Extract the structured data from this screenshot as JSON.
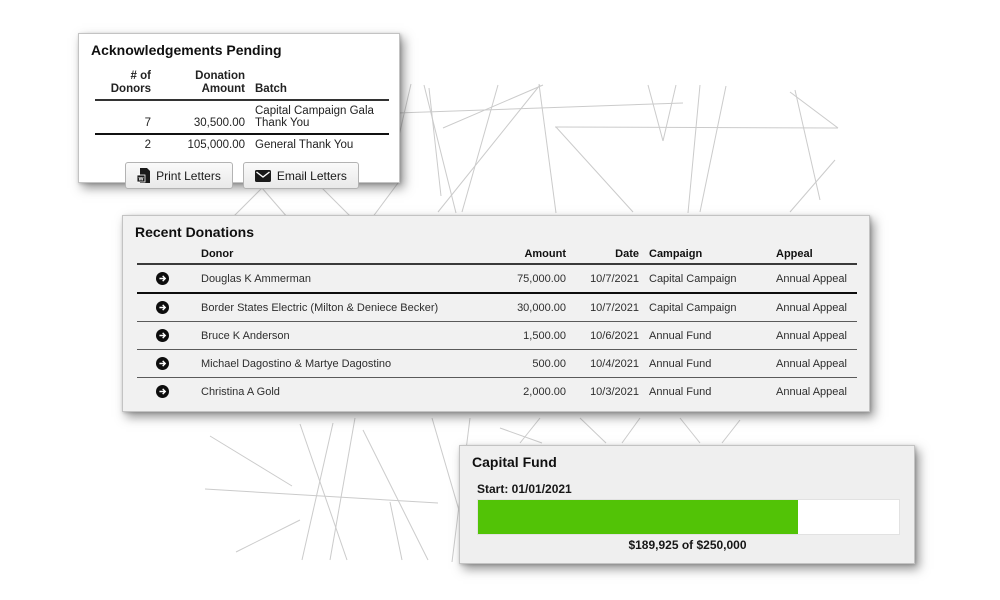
{
  "ack": {
    "title": "Acknowledgements Pending",
    "headers": {
      "donors_l1": "# of",
      "donors_l2": "Donors",
      "amount_l1": "Donation",
      "amount_l2": "Amount",
      "batch": "Batch"
    },
    "rows": [
      {
        "donors": "7",
        "amount": "30,500.00",
        "batch": "Capital Campaign Gala Thank You"
      },
      {
        "donors": "2",
        "amount": "105,000.00",
        "batch": "General Thank You"
      }
    ],
    "print_button": "Print Letters",
    "email_button": "Email Letters"
  },
  "recent": {
    "title": "Recent Donations",
    "headers": {
      "donor": "Donor",
      "amount": "Amount",
      "date": "Date",
      "campaign": "Campaign",
      "appeal": "Appeal"
    },
    "rows": [
      {
        "donor": "Douglas K Ammerman",
        "amount": "75,000.00",
        "date": "10/7/2021",
        "campaign": "Capital Campaign",
        "appeal": "Annual Appeal"
      },
      {
        "donor": "Border States Electric (Milton & Deniece Becker)",
        "amount": "30,000.00",
        "date": "10/7/2021",
        "campaign": "Capital Campaign",
        "appeal": "Annual Appeal"
      },
      {
        "donor": "Bruce K Anderson",
        "amount": "1,500.00",
        "date": "10/6/2021",
        "campaign": "Annual Fund",
        "appeal": "Annual Appeal"
      },
      {
        "donor": "Michael Dagostino & Martye Dagostino",
        "amount": "500.00",
        "date": "10/4/2021",
        "campaign": "Annual Fund",
        "appeal": "Annual Appeal"
      },
      {
        "donor": "Christina A Gold",
        "amount": "2,000.00",
        "date": "10/3/2021",
        "campaign": "Annual Fund",
        "appeal": "Annual Appeal"
      }
    ]
  },
  "capital": {
    "title": "Capital Fund",
    "start_label": "Start: 01/01/2021",
    "caption": "$189,925 of $250,000",
    "raised": 189925,
    "goal": 250000,
    "percent": 75.97,
    "bar_color": "#52c306"
  },
  "icons": {
    "row_arrow": "arrow-right-circle-icon",
    "print": "word-document-icon",
    "email": "envelope-icon"
  }
}
